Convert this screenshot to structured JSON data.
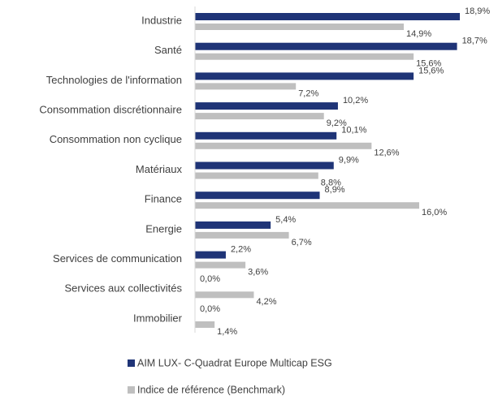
{
  "chart_data": {
    "type": "bar",
    "orientation": "horizontal",
    "categories": [
      "Industrie",
      "Santé",
      "Technologies de l'information",
      "Consommation discrétionnaire",
      "Consommation non cyclique",
      "Matériaux",
      "Finance",
      "Energie",
      "Services de communication",
      "Services aux collectivités",
      "Immobilier"
    ],
    "series": [
      {
        "name": "AIM LUX- C-Quadrat Europe Multicap ESG",
        "color": "#1f3477",
        "values": [
          18.9,
          18.7,
          15.6,
          10.2,
          10.1,
          9.9,
          8.9,
          5.4,
          2.2,
          0.0,
          0.0
        ],
        "value_labels": [
          "18,9%",
          "18,7%",
          "15,6%",
          "10,2%",
          "10,1%",
          "9,9%",
          "8,9%",
          "5,4%",
          "2,2%",
          "0,0%",
          "0,0%"
        ]
      },
      {
        "name": "Indice de référence (Benchmark)",
        "color": "#bfbfbf",
        "values": [
          14.9,
          15.6,
          7.2,
          9.2,
          12.6,
          8.8,
          16.0,
          6.7,
          3.6,
          4.2,
          1.4
        ],
        "value_labels": [
          "14,9%",
          "15,6%",
          "7,2%",
          "9,2%",
          "12,6%",
          "8,8%",
          "16,0%",
          "6,7%",
          "3,6%",
          "4,2%",
          "1,4%"
        ]
      }
    ]
  }
}
